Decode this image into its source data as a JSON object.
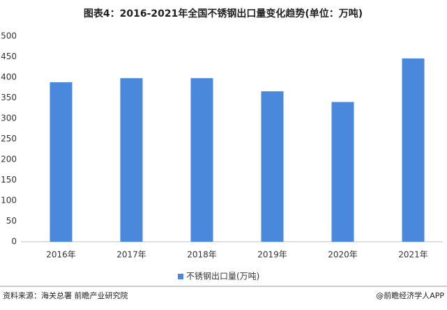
{
  "chart_data": {
    "type": "bar",
    "title": "图表4：2016-2021年全国不锈钢出口量变化趋势(单位：万吨)",
    "categories": [
      "2016年",
      "2017年",
      "2018年",
      "2019年",
      "2020年",
      "2021年"
    ],
    "series": [
      {
        "name": "不锈钢出口量(万吨)",
        "color": "#4a88db",
        "values": [
          388,
          398,
          398,
          366,
          340,
          446
        ]
      }
    ],
    "ylim": [
      0,
      500
    ],
    "yticks": [
      0,
      50,
      100,
      150,
      200,
      250,
      300,
      350,
      400,
      450,
      500
    ],
    "grid": false,
    "legend": "bottom",
    "source": "资料来源：海关总署 前瞻产业研究院",
    "credit": "@前瞻经济学人APP"
  }
}
